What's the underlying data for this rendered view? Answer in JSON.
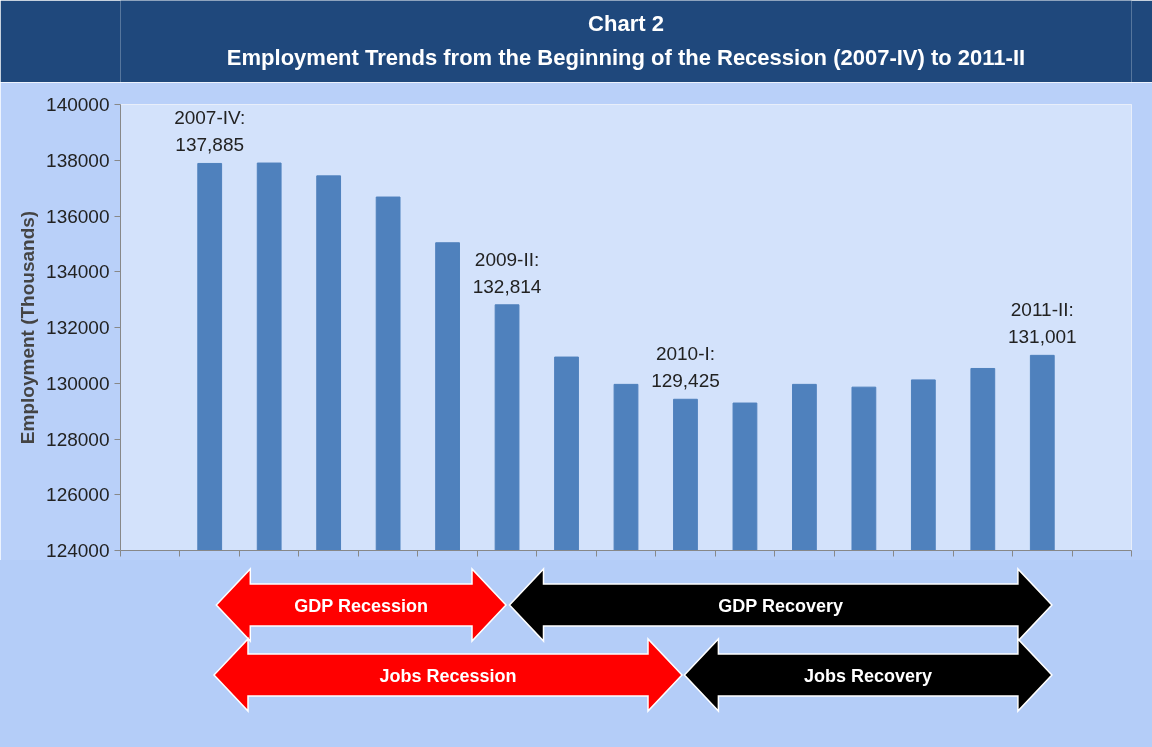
{
  "chart_data": {
    "type": "bar",
    "title": "Chart 2",
    "subtitle": "Employment Trends from the Beginning of the Recession (2007-IV) to 2011-II",
    "ylabel": "Employment (Thousands)",
    "categories": [
      null,
      null,
      null,
      null,
      null,
      null,
      null,
      null,
      null,
      null,
      null,
      null,
      null,
      null,
      null,
      null,
      null
    ],
    "values": [
      null,
      137885,
      137900,
      137440,
      136680,
      135040,
      132814,
      130940,
      129960,
      129425,
      129290,
      129960,
      129860,
      130120,
      130530,
      131001,
      null
    ],
    "value_labels": [
      null,
      "2007-IV:\n137,885",
      null,
      null,
      null,
      null,
      "2009-II:\n132,814",
      null,
      null,
      "2010-I:\n129,425",
      null,
      null,
      null,
      null,
      null,
      "2011-II:\n131,001",
      null
    ],
    "color": "#4f81bd",
    "ylim": [
      124000,
      140000
    ],
    "yticks": [
      124000,
      126000,
      128000,
      130000,
      132000,
      134000,
      136000,
      138000,
      140000
    ],
    "grid": false,
    "annotations": [
      "GDP Recession",
      "GDP Recovery",
      "Jobs Recession",
      "Jobs Recovery"
    ]
  }
}
